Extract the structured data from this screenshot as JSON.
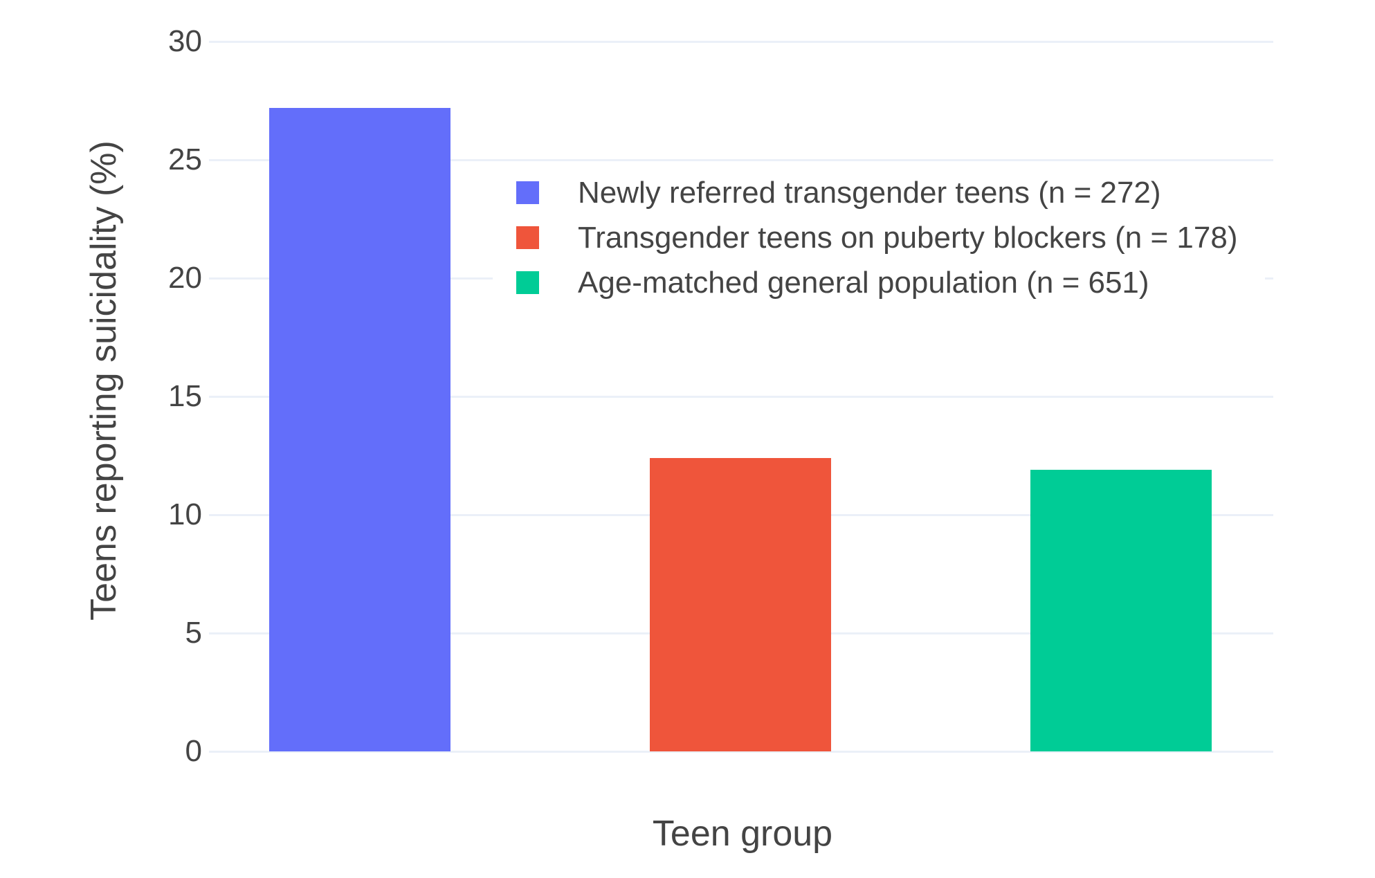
{
  "chart_data": {
    "type": "bar",
    "title": "",
    "xlabel": "Teen group",
    "ylabel": "Teens reporting suicidality (%)",
    "categories": [
      "Newly referred transgender teens (n = 272)",
      "Transgender teens on puberty blockers (n = 178)",
      "Age-matched general population (n = 651)"
    ],
    "values": [
      27.2,
      12.4,
      11.9
    ],
    "bar_colors": [
      "#636EFA",
      "#EF553B",
      "#00CC96"
    ],
    "ylim": [
      0,
      30
    ],
    "yticks": [
      "0",
      "5",
      "10",
      "15",
      "20",
      "25",
      "30"
    ],
    "ytick_values": [
      0,
      5,
      10,
      15,
      20,
      25,
      30
    ],
    "grid": true,
    "legend_position": "inside top, over plot, white background",
    "legend": [
      {
        "label": "Newly referred transgender teens (n = 272)",
        "color": "#636EFA"
      },
      {
        "label": "Transgender teens on puberty blockers (n = 178)",
        "color": "#EF553B"
      },
      {
        "label": "Age-matched general population (n = 651)",
        "color": "#00CC96"
      }
    ]
  },
  "colors": {
    "background": "#FFFFFF",
    "gridline": "#EBF0F8",
    "text": "#444444"
  }
}
